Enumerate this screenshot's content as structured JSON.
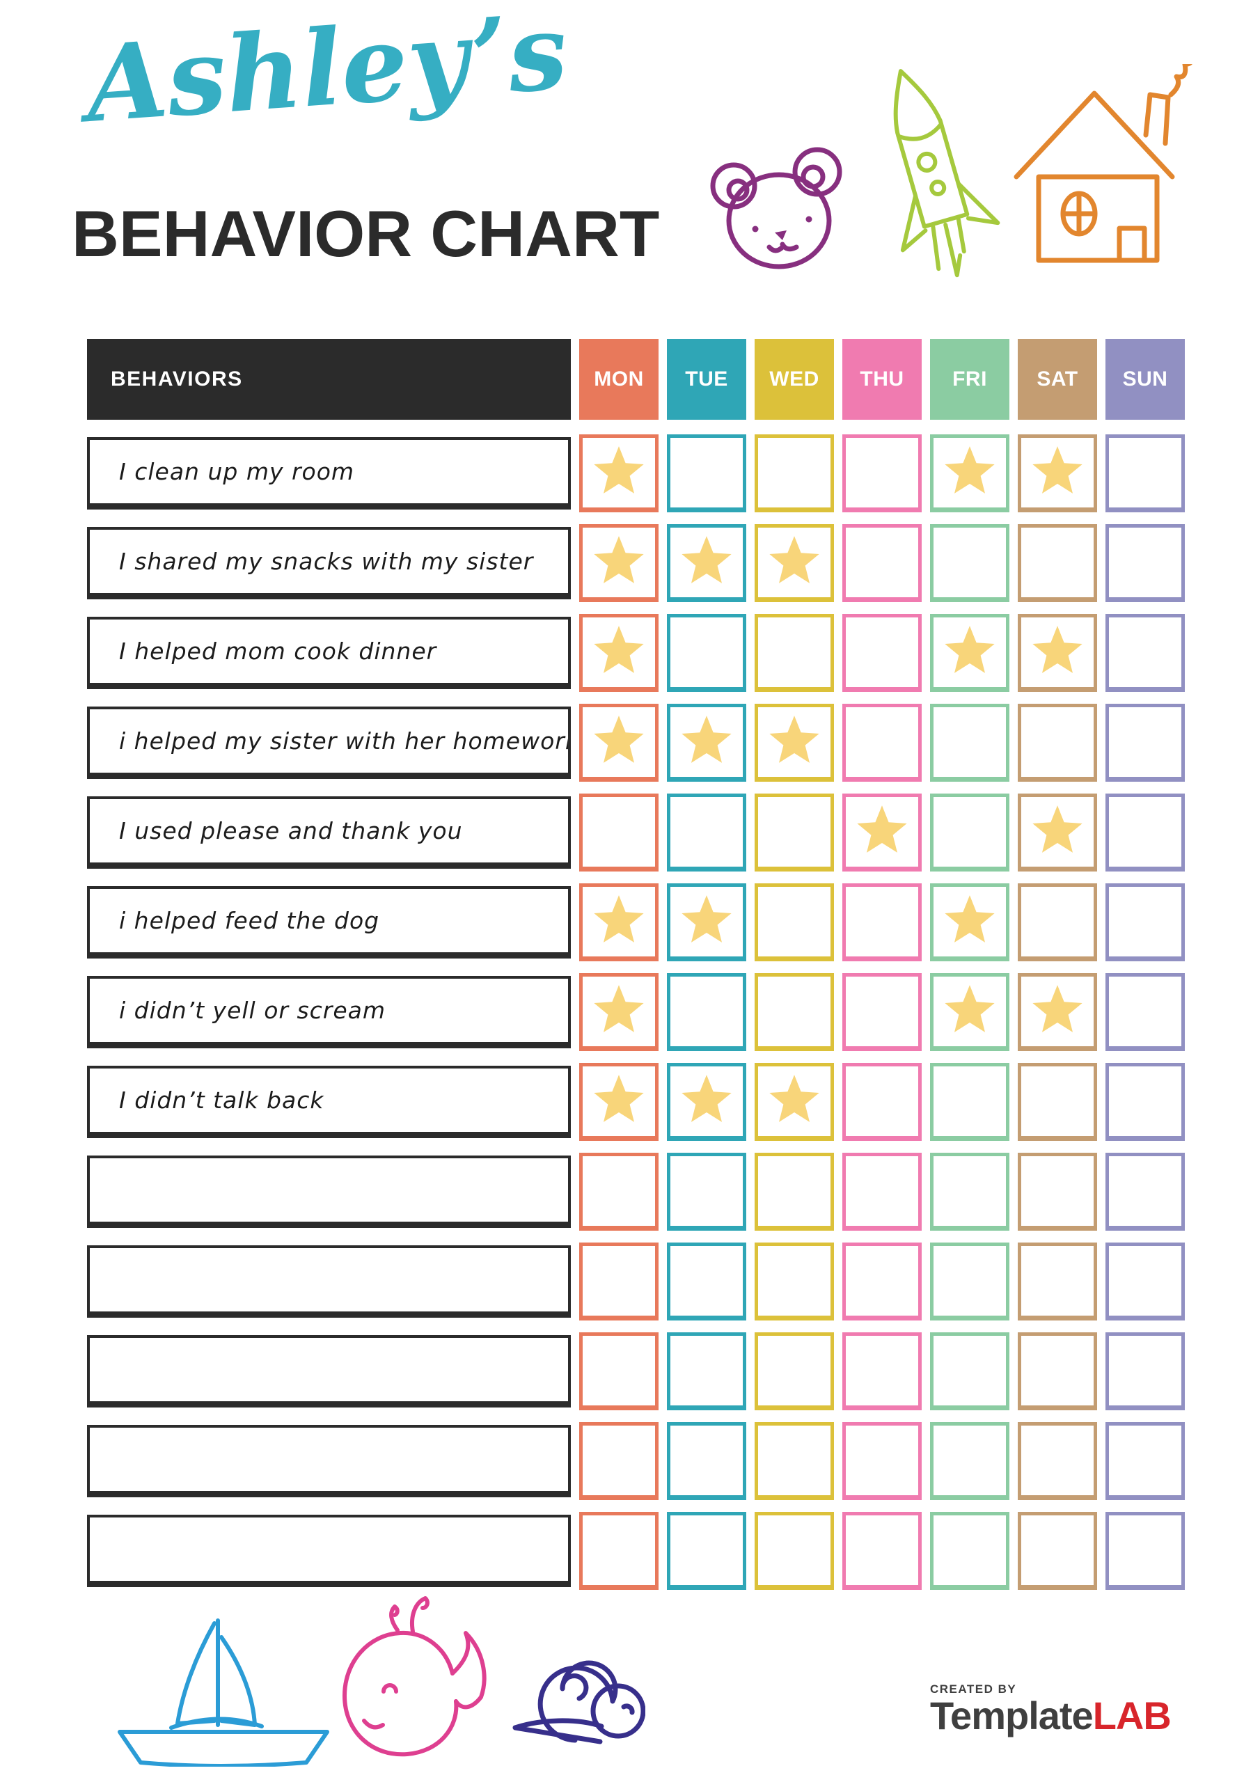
{
  "header": {
    "script_title": "Ashley’s",
    "main_title": "BEHAVIOR CHART"
  },
  "doodles": {
    "top": [
      "bear",
      "rocket",
      "house"
    ],
    "bottom": [
      "sailboat",
      "whale",
      "snail"
    ]
  },
  "colors": {
    "title_script": "#36AEC3",
    "title_main": "#2B2B2B",
    "header_bg": "#2B2B2B",
    "star": "#F8D57A",
    "bear": "#872F7F",
    "rocket": "#A5C93D",
    "house": "#E2862E",
    "sailboat": "#2B9CD6",
    "whale": "#DE3F90",
    "snail": "#372F8B",
    "brand_gray": "#3F3F3F",
    "brand_red": "#D8252B"
  },
  "table": {
    "behaviors_header": "BEHAVIORS",
    "days": [
      {
        "label": "MON",
        "color": "#E8795B"
      },
      {
        "label": "TUE",
        "color": "#2FA6B6"
      },
      {
        "label": "WED",
        "color": "#DCC13A"
      },
      {
        "label": "THU",
        "color": "#F07BB0"
      },
      {
        "label": "FRI",
        "color": "#8BCCA2"
      },
      {
        "label": "SAT",
        "color": "#C49D72"
      },
      {
        "label": "SUN",
        "color": "#9190C2"
      }
    ],
    "rows": [
      {
        "label": "I clean up my room",
        "stars": [
          "MON",
          "FRI",
          "SAT"
        ]
      },
      {
        "label": "I shared my snacks with my sister",
        "stars": [
          "MON",
          "TUE",
          "WED"
        ]
      },
      {
        "label": "I helped mom cook dinner",
        "stars": [
          "MON",
          "FRI",
          "SAT"
        ]
      },
      {
        "label": "i helped my sister with her homework",
        "stars": [
          "MON",
          "TUE",
          "WED"
        ]
      },
      {
        "label": "I used please and thank you",
        "stars": [
          "THU",
          "SAT"
        ]
      },
      {
        "label": "i helped feed the dog",
        "stars": [
          "MON",
          "TUE",
          "FRI"
        ]
      },
      {
        "label": "i didn’t yell or scream",
        "stars": [
          "MON",
          "FRI",
          "SAT"
        ]
      },
      {
        "label": "I didn’t talk back",
        "stars": [
          "MON",
          "TUE",
          "WED"
        ]
      },
      {
        "label": "",
        "stars": []
      },
      {
        "label": "",
        "stars": []
      },
      {
        "label": "",
        "stars": []
      },
      {
        "label": "",
        "stars": []
      },
      {
        "label": "",
        "stars": []
      }
    ]
  },
  "footer": {
    "created_by": "CREATED BY",
    "brand_primary": "Template",
    "brand_accent": "LAB"
  }
}
